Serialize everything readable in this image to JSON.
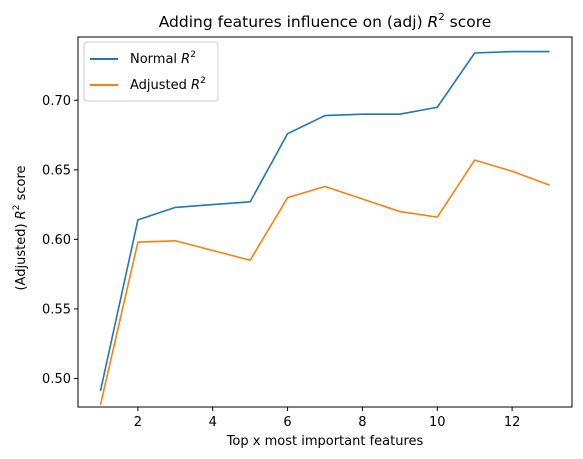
{
  "chart_data": {
    "type": "line",
    "title_main": "Adding features influence on (adj) ",
    "title_sym": "R",
    "title_sup": "2",
    "title_tail": " score",
    "xlabel": "Top x most important features",
    "ylabel_pre": "(Adjusted) ",
    "ylabel_sym": "R",
    "ylabel_sup": "2",
    "ylabel_post": " score",
    "x": [
      1,
      2,
      3,
      4,
      5,
      6,
      7,
      8,
      9,
      10,
      11,
      12,
      13
    ],
    "xticks": [
      2,
      4,
      6,
      8,
      10,
      12
    ],
    "yticks": [
      0.5,
      0.55,
      0.6,
      0.65,
      0.7
    ],
    "xlim": [
      0.4,
      13.6
    ],
    "ylim": [
      0.4795,
      0.7455
    ],
    "legend_position": "upper-left",
    "grid": false,
    "series": [
      {
        "name_pre": "Normal ",
        "name_sym": "R",
        "name_sup": "2",
        "color": "#1f77b4",
        "values": [
          0.491,
          0.614,
          0.623,
          0.625,
          0.627,
          0.676,
          0.689,
          0.69,
          0.69,
          0.695,
          0.734,
          0.735,
          0.735
        ]
      },
      {
        "name_pre": "Adjusted ",
        "name_sym": "R",
        "name_sup": "2",
        "color": "#ff7f0e",
        "values": [
          0.481,
          0.598,
          0.599,
          0.592,
          0.585,
          0.63,
          0.638,
          0.629,
          0.62,
          0.616,
          0.657,
          0.649,
          0.639
        ]
      }
    ]
  }
}
